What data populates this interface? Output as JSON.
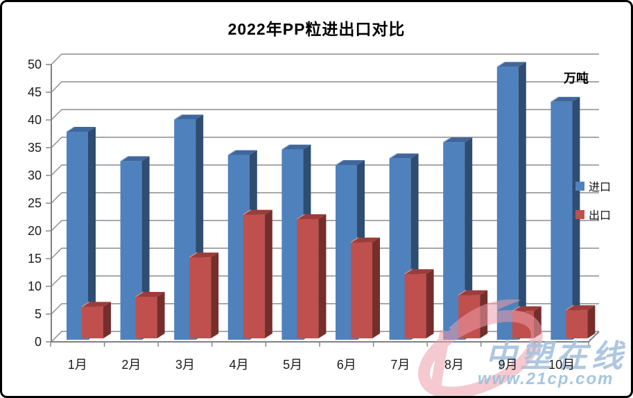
{
  "title": "2022年PP粒进出口对比",
  "unit_label": "万吨",
  "watermark": {
    "site_name": "中塑在线",
    "site_url": "www.21cp.com",
    "logo_color": "#EC9DA9"
  },
  "chart_data": {
    "type": "bar",
    "style": "3d-clustered-column",
    "title": "2022年PP粒进出口对比",
    "unit": "万吨",
    "categories": [
      "1月",
      "2月",
      "3月",
      "4月",
      "5月",
      "6月",
      "7月",
      "8月",
      "9月",
      "10月"
    ],
    "series": [
      {
        "name": "进口",
        "values": [
          37.5,
          32.2,
          39.7,
          33.3,
          34.3,
          31.5,
          32.7,
          35.6,
          49.2,
          42.9
        ],
        "color": "#4F81BD",
        "color_top": "#40679B",
        "color_side": "#2E4D71",
        "color_highlight": "#A9C0DB"
      },
      {
        "name": "出口",
        "values": [
          5.7,
          7.5,
          14.6,
          22.3,
          21.5,
          17.3,
          11.6,
          7.8,
          4.9,
          5.1
        ],
        "color": "#C0504D",
        "color_top": "#9C3D3B",
        "color_side": "#752E2B",
        "color_highlight": "#D89B97"
      }
    ],
    "xlabel": "",
    "ylabel": "万吨",
    "ylim": [
      0,
      50
    ],
    "ystep": 5,
    "grid": true,
    "legend_position": "right",
    "gridline_color": "#8C8C8C",
    "axis_color": "#808080"
  }
}
